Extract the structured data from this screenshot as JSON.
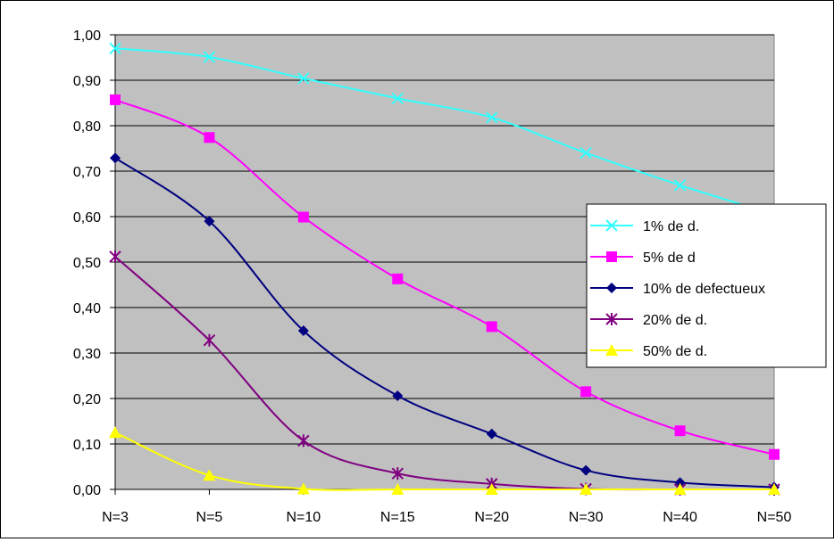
{
  "chart_data": {
    "type": "line",
    "categories": [
      "N=3",
      "N=5",
      "N=10",
      "N=15",
      "N=20",
      "N=30",
      "N=40",
      "N=50"
    ],
    "ylim": [
      0,
      1
    ],
    "yticks": [
      "0,00",
      "0,10",
      "0,20",
      "0,30",
      "0,40",
      "0,50",
      "0,60",
      "0,70",
      "0,80",
      "0,90",
      "1,00"
    ],
    "grid": true,
    "legend_position": "right",
    "plot_background": "#c0c0c0",
    "series": [
      {
        "name": "1% de d.",
        "color": "#33ffff",
        "marker": "x",
        "values": [
          0.97,
          0.951,
          0.904,
          0.86,
          0.818,
          0.74,
          0.669,
          0.605
        ]
      },
      {
        "name": "5% de d",
        "color": "#ff00ff",
        "marker": "square",
        "values": [
          0.857,
          0.774,
          0.599,
          0.463,
          0.358,
          0.215,
          0.129,
          0.077
        ]
      },
      {
        "name": "10% de defectueux",
        "color": "#000080",
        "marker": "diamond",
        "values": [
          0.729,
          0.59,
          0.349,
          0.206,
          0.122,
          0.042,
          0.015,
          0.005
        ]
      },
      {
        "name": "20% de d.",
        "color": "#800080",
        "marker": "asterisk",
        "values": [
          0.512,
          0.328,
          0.107,
          0.035,
          0.012,
          0.001,
          0.0,
          0.0
        ]
      },
      {
        "name": "50% de d.",
        "color": "#ffff00",
        "marker": "triangle",
        "values": [
          0.125,
          0.031,
          0.001,
          0.0,
          0.0,
          0.0,
          0.0,
          0.0
        ]
      }
    ]
  }
}
